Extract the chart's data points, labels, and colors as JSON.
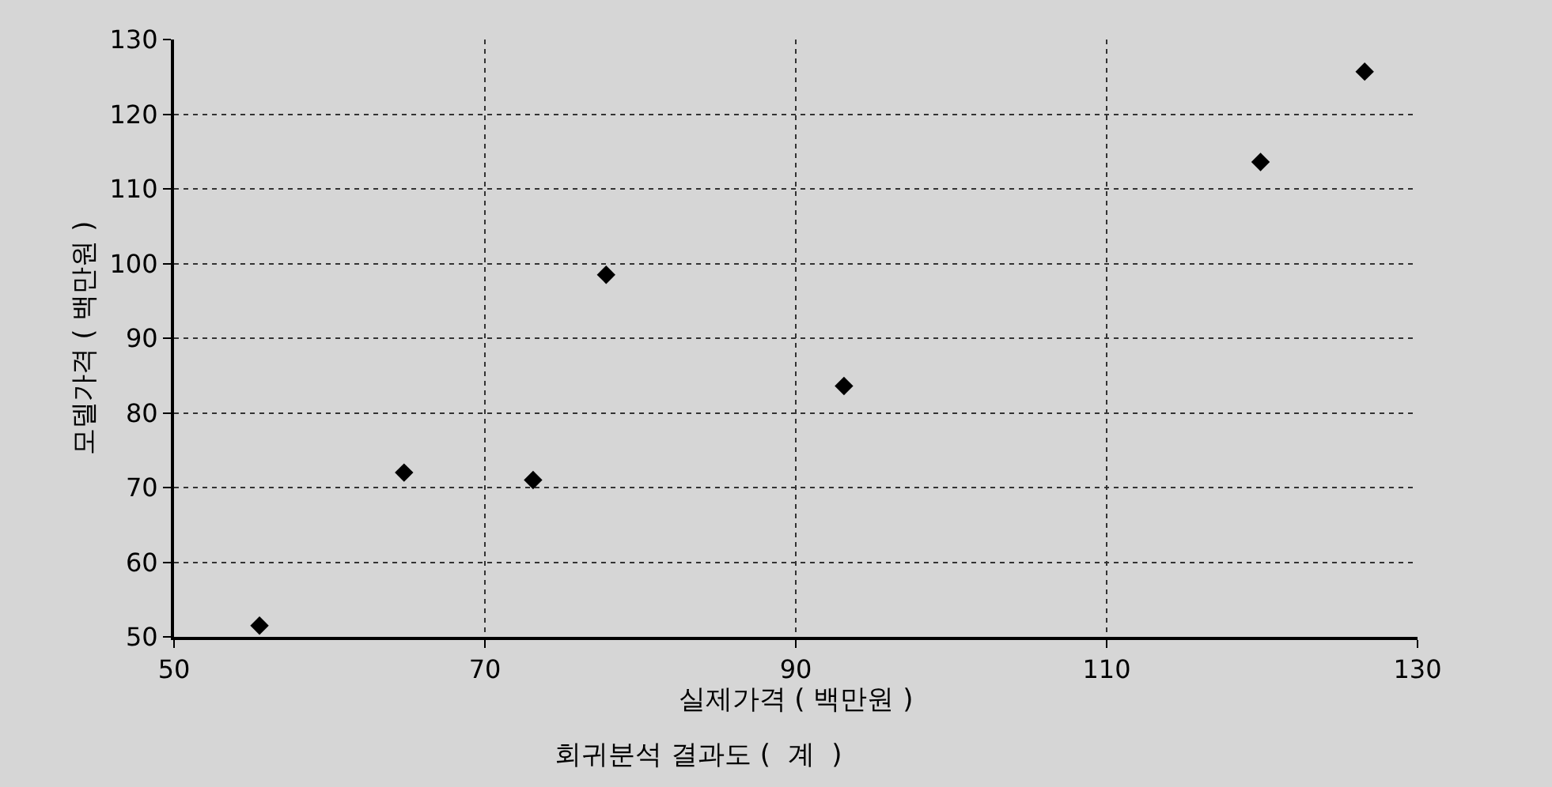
{
  "chart_data": {
    "type": "scatter",
    "title": "회귀분석 결과도 (  계  )",
    "xlabel": "실제가격 ( 백만원 )",
    "ylabel": "모델가격 ( 백만원 )",
    "x": [
      55.5,
      64.8,
      73.1,
      77.8,
      93.1,
      119.9,
      126.6
    ],
    "series": [
      {
        "color": "#000000",
        "values": [
          51.5,
          72,
          71,
          98.5,
          83.6,
          113.6,
          125.7
        ]
      }
    ],
    "xlim": [
      50,
      130
    ],
    "xticks": [
      50,
      70,
      90,
      110,
      130
    ],
    "ylim": [
      50,
      130
    ],
    "yticks": [
      50,
      60,
      70,
      80,
      90,
      100,
      110,
      120,
      130
    ],
    "grid": true,
    "marker": "diamond"
  }
}
